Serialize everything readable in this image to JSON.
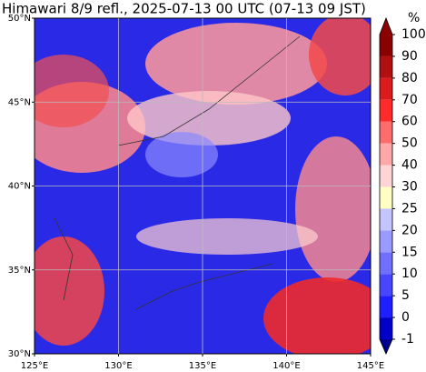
{
  "title": "Himawari 8/9 refl., 2025-07-13 00 UTC (07-13 09 JST)",
  "lat_labels": [
    "50°N",
    "45°N",
    "40°N",
    "35°N",
    "30°N"
  ],
  "lon_labels": [
    "125°E",
    "130°E",
    "135°E",
    "140°E",
    "145°E"
  ],
  "colorbar": {
    "unit": "%",
    "ticks": [
      -1,
      0,
      5,
      10,
      15,
      20,
      25,
      30,
      40,
      50,
      60,
      70,
      80,
      90,
      100
    ],
    "colors": [
      "#00008b",
      "#0000c8",
      "#1e1eff",
      "#4646ff",
      "#7070ff",
      "#9a9aff",
      "#c4c4ff",
      "#ffffc4",
      "#ffd4d4",
      "#ffa8a8",
      "#ff6c6c",
      "#ff2a2a",
      "#dc1c1c",
      "#b21010",
      "#8b0000"
    ]
  }
}
